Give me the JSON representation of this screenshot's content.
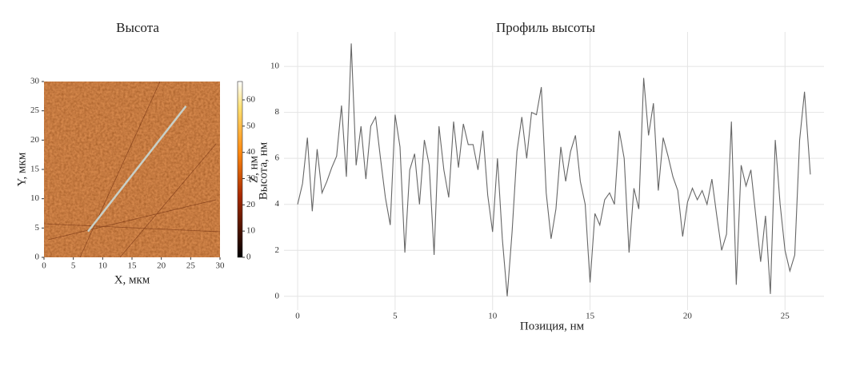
{
  "chart_data": [
    {
      "type": "image",
      "title": "Высота",
      "xlabel": "X, мкм",
      "ylabel": "Y, мкм",
      "xlim": [
        0,
        30
      ],
      "ylim": [
        0,
        30
      ],
      "xticks": [
        0,
        5,
        10,
        15,
        20,
        25,
        30
      ],
      "yticks": [
        0,
        5,
        10,
        15,
        20,
        25,
        30
      ],
      "colorbar": {
        "label": "Z, нм",
        "lim": [
          0,
          67
        ],
        "ticks": [
          0,
          10,
          20,
          30,
          40,
          50,
          60
        ],
        "colormap": "afmhot"
      },
      "profile_line": {
        "x": [
          7.5,
          24.2
        ],
        "y": [
          4.4,
          25.8
        ],
        "color": "#c8d0c8"
      }
    },
    {
      "type": "line",
      "title": "Профиль высоты",
      "xlabel": "Позиция, нм",
      "ylabel": "Высота, нм",
      "x": [
        0,
        0.25,
        0.5,
        0.75,
        1,
        1.25,
        1.5,
        1.75,
        2,
        2.25,
        2.5,
        2.75,
        3,
        3.25,
        3.5,
        3.75,
        4,
        4.25,
        4.5,
        4.75,
        5,
        5.25,
        5.5,
        5.75,
        6,
        6.25,
        6.5,
        6.75,
        7,
        7.25,
        7.5,
        7.75,
        8,
        8.25,
        8.5,
        8.75,
        9,
        9.25,
        9.5,
        9.75,
        10,
        10.25,
        10.5,
        10.75,
        11,
        11.25,
        11.5,
        11.75,
        12,
        12.25,
        12.5,
        12.75,
        13,
        13.25,
        13.5,
        13.75,
        14,
        14.25,
        14.5,
        14.75,
        15,
        15.25,
        15.5,
        15.75,
        16,
        16.25,
        16.5,
        16.75,
        17,
        17.25,
        17.5,
        17.75,
        18,
        18.25,
        18.5,
        18.75,
        19,
        19.25,
        19.5,
        19.75,
        20,
        20.25,
        20.5,
        20.75,
        21,
        21.25,
        21.5,
        21.75,
        22,
        22.25,
        22.5,
        22.75,
        23,
        23.25,
        23.5,
        23.75,
        24,
        24.25,
        24.5,
        24.75,
        25,
        25.25,
        25.5,
        25.75,
        26,
        26.3
      ],
      "series": [
        {
          "color": "#666666",
          "values": [
            4.0,
            4.9,
            6.9,
            3.7,
            6.4,
            4.5,
            5.0,
            5.6,
            6.1,
            8.3,
            5.2,
            11.0,
            5.7,
            7.4,
            5.1,
            7.4,
            7.8,
            6.0,
            4.3,
            3.1,
            7.9,
            6.5,
            1.9,
            5.5,
            6.2,
            4.0,
            6.8,
            5.7,
            1.8,
            7.4,
            5.5,
            4.3,
            7.6,
            5.6,
            7.5,
            6.6,
            6.6,
            5.5,
            7.2,
            4.4,
            2.8,
            6.0,
            2.5,
            0.0,
            2.8,
            6.3,
            7.8,
            6.0,
            8.0,
            7.9,
            9.1,
            4.5,
            2.5,
            3.8,
            6.5,
            5.0,
            6.3,
            7.0,
            5.0,
            4.0,
            0.6,
            3.6,
            3.1,
            4.2,
            4.5,
            4.0,
            7.2,
            6.0,
            1.9,
            4.7,
            3.8,
            9.5,
            7.0,
            8.4,
            4.6,
            6.9,
            6.1,
            5.2,
            4.6,
            2.6,
            4.1,
            4.7,
            4.2,
            4.6,
            4.0,
            5.1,
            3.5,
            2.0,
            2.7,
            7.6,
            0.5,
            5.7,
            4.8,
            5.5,
            3.5,
            1.5,
            3.5,
            0.1,
            6.8,
            4.0,
            2.0,
            1.1,
            1.8,
            6.8,
            8.9,
            5.3
          ]
        }
      ],
      "xlim": [
        -0.7,
        27
      ],
      "ylim": [
        -0.6,
        11.5
      ],
      "xticks": [
        0,
        5,
        10,
        15,
        20,
        25
      ],
      "yticks": [
        0,
        2,
        4,
        6,
        8,
        10
      ],
      "grid": true
    }
  ]
}
